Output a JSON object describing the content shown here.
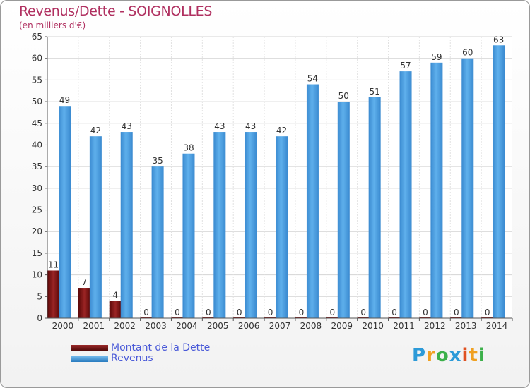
{
  "chart_data": {
    "type": "bar",
    "title": "Revenus/Dette - SOIGNOLLES",
    "subtitle": "(en milliers d'€)",
    "categories": [
      "2000",
      "2001",
      "2002",
      "2003",
      "2004",
      "2005",
      "2006",
      "2007",
      "2008",
      "2009",
      "2010",
      "2011",
      "2012",
      "2013",
      "2014"
    ],
    "series": [
      {
        "name": "Montant de la Dette",
        "color": "#7a1212",
        "values": [
          11,
          7,
          4,
          0,
          0,
          0,
          0,
          0,
          0,
          0,
          0,
          0,
          0,
          0,
          0
        ]
      },
      {
        "name": "Revenus",
        "color": "#4aa0e0",
        "values": [
          49,
          42,
          43,
          35,
          38,
          43,
          43,
          42,
          54,
          50,
          51,
          57,
          59,
          60,
          63
        ]
      }
    ],
    "ylim": [
      0,
      65
    ],
    "yticks": [
      0,
      5,
      10,
      15,
      20,
      25,
      30,
      35,
      40,
      45,
      50,
      55,
      60,
      65
    ],
    "grid": true,
    "legend_position": "bottom-left"
  },
  "logo": {
    "letters": [
      "P",
      "r",
      "o",
      "x",
      "i",
      "t",
      "i"
    ],
    "colors": [
      "#2c9ad8",
      "#f0a020",
      "#3cb04a",
      "#2c9ad8",
      "#e05020",
      "#f0a020",
      "#3cb04a"
    ]
  }
}
